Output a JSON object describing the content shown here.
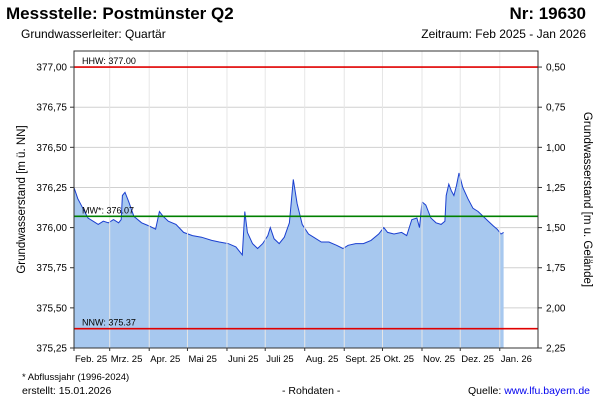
{
  "header": {
    "title": "Messstelle: Postmünster Q2",
    "station_number": "Nr: 19630",
    "aquifer": "Grundwasserleiter: Quartär",
    "period": "Zeitraum: Feb 2025 - Jan 2026"
  },
  "footer": {
    "footnote": "* Abflussjahr (1996-2024)",
    "created": "erstellt:  15.01.2026",
    "raw_data": "- Rohdaten -",
    "source_prefix": "Quelle: ",
    "source_link": "www.lfu.bayern.de"
  },
  "colors": {
    "fill": "#a7c8ef",
    "line": "#1a3fd0",
    "hhw": "#e00000",
    "mw": "#008000",
    "nnw": "#e00000",
    "grid": "#d0d0d0"
  },
  "chart_data": {
    "type": "area",
    "ylabel": "Grundwasserstand [m ü. NN]",
    "y2label": "Grundwasserstand [m u. Gelände]",
    "ylim": [
      375.25,
      377.1
    ],
    "yticks": [
      377.0,
      376.75,
      376.5,
      376.25,
      376.0,
      375.75,
      375.5,
      375.25
    ],
    "ytick_labels": [
      "377,00",
      "376,75",
      "376,50",
      "376,25",
      "376,00",
      "375,75",
      "375,50",
      "375,25"
    ],
    "y2ticks": [
      {
        "level": 377.0,
        "label": "0,50"
      },
      {
        "level": 376.75,
        "label": "0,75"
      },
      {
        "level": 376.5,
        "label": "1,00"
      },
      {
        "level": 376.25,
        "label": "1,25"
      },
      {
        "level": 376.0,
        "label": "1,50"
      },
      {
        "level": 375.75,
        "label": "1,75"
      },
      {
        "level": 375.5,
        "label": "2,00"
      },
      {
        "level": 375.25,
        "label": "2,25"
      }
    ],
    "x_range": [
      "2025-02-01",
      "2026-01-31"
    ],
    "month_ticks": [
      {
        "date": "2025-02-01",
        "label": "Feb. 25"
      },
      {
        "date": "2025-03-01",
        "label": "Mrz. 25"
      },
      {
        "date": "2025-04-01",
        "label": "Apr. 25"
      },
      {
        "date": "2025-05-01",
        "label": "Mai 25"
      },
      {
        "date": "2025-06-01",
        "label": "Juni 25"
      },
      {
        "date": "2025-07-01",
        "label": "Juli 25"
      },
      {
        "date": "2025-08-01",
        "label": "Aug. 25"
      },
      {
        "date": "2025-09-01",
        "label": "Sept. 25"
      },
      {
        "date": "2025-10-01",
        "label": "Okt. 25"
      },
      {
        "date": "2025-11-01",
        "label": "Nov. 25"
      },
      {
        "date": "2025-12-01",
        "label": "Dez. 25"
      },
      {
        "date": "2026-01-01",
        "label": "Jan. 26"
      }
    ],
    "reference_lines": [
      {
        "name": "HHW",
        "value": 377.0,
        "label": "HHW: 377.00",
        "color": "#e00000"
      },
      {
        "name": "MW",
        "value": 376.07,
        "label": "MW*: 376.07",
        "color": "#008000"
      },
      {
        "name": "NNW",
        "value": 375.37,
        "label": "NNW: 375.37",
        "color": "#e00000"
      }
    ],
    "series": [
      {
        "points": [
          [
            "2025-02-01",
            376.25
          ],
          [
            "2025-02-04",
            376.18
          ],
          [
            "2025-02-08",
            376.12
          ],
          [
            "2025-02-12",
            376.06
          ],
          [
            "2025-02-16",
            376.04
          ],
          [
            "2025-02-20",
            376.02
          ],
          [
            "2025-02-24",
            376.04
          ],
          [
            "2025-02-28",
            376.03
          ],
          [
            "2025-03-04",
            376.05
          ],
          [
            "2025-03-08",
            376.03
          ],
          [
            "2025-03-10",
            376.05
          ],
          [
            "2025-03-11",
            376.2
          ],
          [
            "2025-03-13",
            376.22
          ],
          [
            "2025-03-16",
            376.16
          ],
          [
            "2025-03-20",
            376.07
          ],
          [
            "2025-03-26",
            376.03
          ],
          [
            "2025-04-01",
            376.01
          ],
          [
            "2025-04-06",
            375.99
          ],
          [
            "2025-04-09",
            376.1
          ],
          [
            "2025-04-12",
            376.07
          ],
          [
            "2025-04-16",
            376.04
          ],
          [
            "2025-04-22",
            376.02
          ],
          [
            "2025-04-28",
            375.97
          ],
          [
            "2025-05-05",
            375.95
          ],
          [
            "2025-05-12",
            375.94
          ],
          [
            "2025-05-20",
            375.92
          ],
          [
            "2025-05-26",
            375.91
          ],
          [
            "2025-06-02",
            375.9
          ],
          [
            "2025-06-08",
            375.88
          ],
          [
            "2025-06-13",
            375.83
          ],
          [
            "2025-06-15",
            376.1
          ],
          [
            "2025-06-17",
            375.97
          ],
          [
            "2025-06-21",
            375.9
          ],
          [
            "2025-06-25",
            375.87
          ],
          [
            "2025-06-29",
            375.9
          ],
          [
            "2025-07-03",
            375.95
          ],
          [
            "2025-07-05",
            376.0
          ],
          [
            "2025-07-08",
            375.93
          ],
          [
            "2025-07-12",
            375.9
          ],
          [
            "2025-07-16",
            375.94
          ],
          [
            "2025-07-20",
            376.03
          ],
          [
            "2025-07-23",
            376.3
          ],
          [
            "2025-07-26",
            376.15
          ],
          [
            "2025-07-30",
            376.02
          ],
          [
            "2025-08-04",
            375.96
          ],
          [
            "2025-08-08",
            375.94
          ],
          [
            "2025-08-14",
            375.91
          ],
          [
            "2025-08-20",
            375.91
          ],
          [
            "2025-08-26",
            375.89
          ],
          [
            "2025-08-31",
            375.87
          ],
          [
            "2025-09-04",
            375.89
          ],
          [
            "2025-09-10",
            375.9
          ],
          [
            "2025-09-16",
            375.9
          ],
          [
            "2025-09-22",
            375.92
          ],
          [
            "2025-09-28",
            375.96
          ],
          [
            "2025-10-02",
            376.0
          ],
          [
            "2025-10-05",
            375.97
          ],
          [
            "2025-10-10",
            375.96
          ],
          [
            "2025-10-16",
            375.97
          ],
          [
            "2025-10-20",
            375.95
          ],
          [
            "2025-10-24",
            376.05
          ],
          [
            "2025-10-28",
            376.06
          ],
          [
            "2025-10-30",
            376.0
          ],
          [
            "2025-11-01",
            376.16
          ],
          [
            "2025-11-04",
            376.14
          ],
          [
            "2025-11-08",
            376.06
          ],
          [
            "2025-11-12",
            376.03
          ],
          [
            "2025-11-16",
            376.02
          ],
          [
            "2025-11-19",
            376.04
          ],
          [
            "2025-11-20",
            376.2
          ],
          [
            "2025-11-22",
            376.27
          ],
          [
            "2025-11-24",
            376.23
          ],
          [
            "2025-11-26",
            376.2
          ],
          [
            "2025-11-28",
            376.26
          ],
          [
            "2025-11-30",
            376.34
          ],
          [
            "2025-12-03",
            376.25
          ],
          [
            "2025-12-07",
            376.18
          ],
          [
            "2025-12-11",
            376.12
          ],
          [
            "2025-12-15",
            376.1
          ],
          [
            "2025-12-19",
            376.07
          ],
          [
            "2025-12-23",
            376.04
          ],
          [
            "2025-12-27",
            376.01
          ],
          [
            "2025-12-30",
            375.99
          ],
          [
            "2026-01-02",
            375.96
          ],
          [
            "2026-01-04",
            375.97
          ]
        ]
      }
    ]
  }
}
